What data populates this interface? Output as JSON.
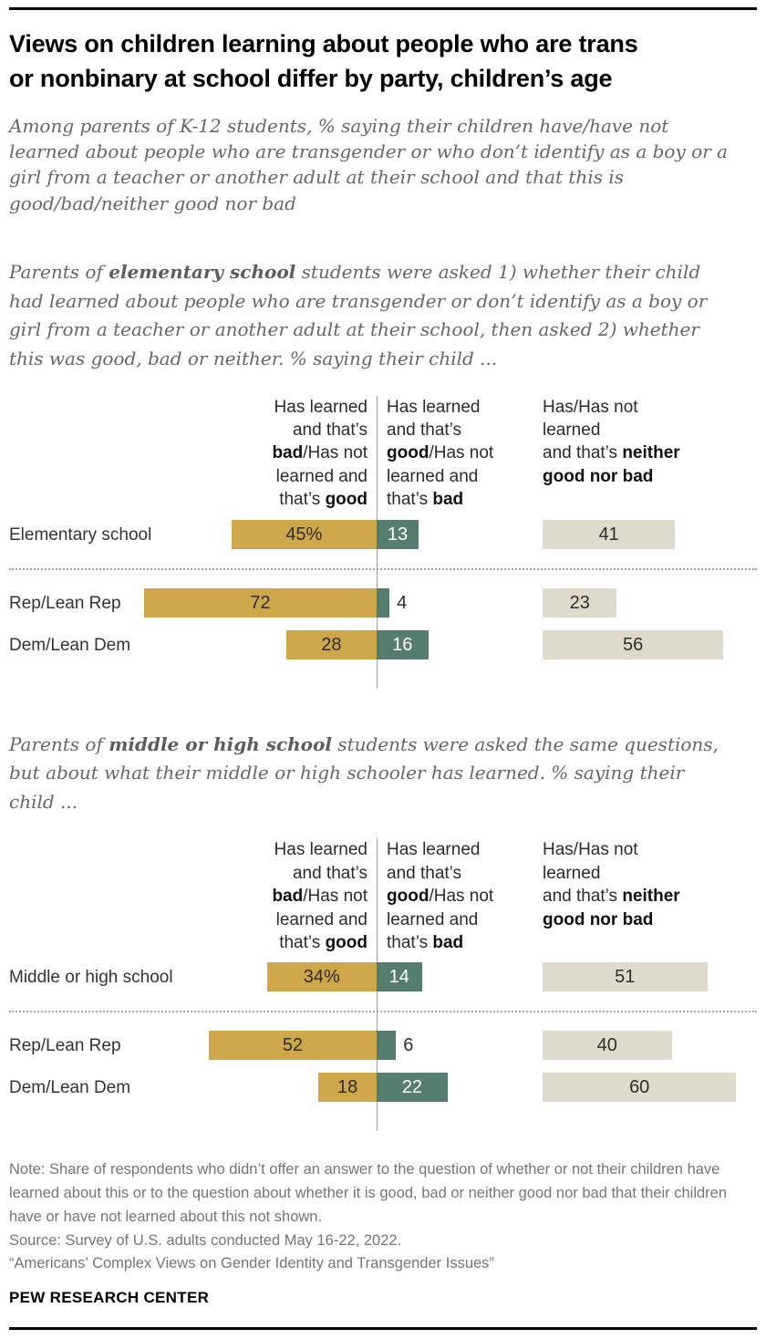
{
  "header": {
    "title_lines": [
      "Views on children learning about people who are trans",
      "or nonbinary at school differ by party, children’s age"
    ],
    "subtitle": "Among parents of K-12 students, % saying their children have/have not learned about people who are transgender or who don’t identify as a boy or a girl from a teacher or another adult at their school and that this is good/bad/neither good nor bad"
  },
  "chart_data": [
    {
      "id": "elementary-school",
      "type": "bar",
      "orientation": "horizontal-diverging",
      "unit": "%",
      "intro": "Parents of **elementary school** students were asked 1) whether their child had learned about people who are transgender or don’t identify as a boy or girl from a teacher or another adult at their school, then asked 2) whether this was good, bad or neither. % saying their child ...",
      "column_headers": [
        "Has learned\nand that’s\n**bad**/Has not\nlearned and\nthat’s **good**",
        "Has learned\nand that’s\n**good**/Has not\nlearned and\nthat’s **bad**",
        "Has/Has not\nlearned\nand that’s **neither\ngood nor bad**"
      ],
      "categories": [
        "Elementary school",
        "Rep/Lean Rep",
        "Dem/Lean Dem"
      ],
      "series": [
        {
          "name": "Has learned and that’s bad/Has not learned and that’s good",
          "color": "#CDA74A",
          "values": [
            45,
            72,
            28
          ]
        },
        {
          "name": "Has learned and that’s good/Has not learned and that’s bad",
          "color": "#557D6E",
          "values": [
            13,
            4,
            16
          ]
        },
        {
          "name": "Has/Has not learned and that’s neither good nor bad",
          "color": "#DEDBCC",
          "values": [
            41,
            23,
            56
          ]
        }
      ],
      "rows": [
        {
          "category": "Elementary school",
          "bad_good_label": "45%",
          "good_bad_label": "13",
          "good_bad_inside": true,
          "neither_label": "41",
          "divider_after": true
        },
        {
          "category": "Rep/Lean Rep",
          "bad_good_label": "72",
          "good_bad_label": "4",
          "good_bad_inside": false,
          "neither_label": "23",
          "divider_after": false
        },
        {
          "category": "Dem/Lean Dem",
          "bad_good_label": "28",
          "good_bad_label": "16",
          "good_bad_inside": true,
          "neither_label": "56",
          "divider_after": false
        }
      ]
    },
    {
      "id": "middle-or-high-school",
      "type": "bar",
      "orientation": "horizontal-diverging",
      "unit": "%",
      "intro": "Parents of **middle or high school** students were asked the same questions, but about what their middle or high schooler has learned. % saying their child ...",
      "column_headers": [
        "Has learned\nand that’s\n**bad**/Has not\nlearned and\nthat’s **good**",
        "Has learned\nand that’s\n**good**/Has not\nlearned and\nthat’s **bad**",
        "Has/Has not\nlearned\nand that’s **neither\ngood nor bad**"
      ],
      "categories": [
        "Middle or high school",
        "Rep/Lean Rep",
        "Dem/Lean Dem"
      ],
      "series": [
        {
          "name": "Has learned and that’s bad/Has not learned and that’s good",
          "color": "#CDA74A",
          "values": [
            34,
            52,
            18
          ]
        },
        {
          "name": "Has learned and that’s good/Has not learned and that’s bad",
          "color": "#557D6E",
          "values": [
            14,
            6,
            22
          ]
        },
        {
          "name": "Has/Has not learned and that’s neither good nor bad",
          "color": "#DEDBCC",
          "values": [
            51,
            40,
            60
          ]
        }
      ],
      "rows": [
        {
          "category": "Middle or high school",
          "bad_good_label": "34%",
          "good_bad_label": "14",
          "good_bad_inside": true,
          "neither_label": "51",
          "divider_after": true
        },
        {
          "category": "Rep/Lean Rep",
          "bad_good_label": "52",
          "good_bad_label": "6",
          "good_bad_inside": false,
          "neither_label": "40",
          "divider_after": false
        },
        {
          "category": "Dem/Lean Dem",
          "bad_good_label": "18",
          "good_bad_label": "22",
          "good_bad_inside": true,
          "neither_label": "60",
          "divider_after": false
        }
      ]
    }
  ],
  "footer": {
    "note": "Note: Share of respondents who didn’t offer an answer to the question of whether or not their children have learned about this or to the question about whether it is good, bad or neither good nor bad that their children have or have not learned about this not shown.",
    "source": "Source: Survey of U.S. adults conducted May 16-22, 2022.",
    "quote": "“Americans’ Complex Views on Gender Identity and Transgender Issues”",
    "brand": "PEW RESEARCH CENTER"
  }
}
